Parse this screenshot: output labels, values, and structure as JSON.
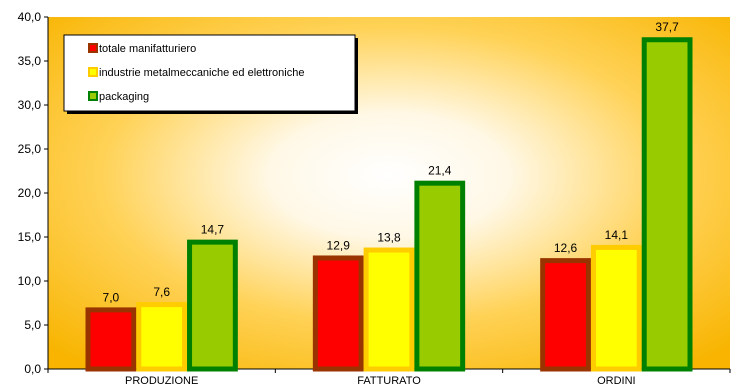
{
  "chart_data": {
    "type": "bar",
    "categories": [
      "PRODUZIONE",
      "FATTURATO",
      "ORDINI"
    ],
    "series": [
      {
        "name": "totale manifatturiero",
        "values": [
          7.0,
          12.9,
          12.6
        ],
        "value_labels": [
          "7,0",
          "12,9",
          "12,6"
        ],
        "fill": "#ff0000",
        "border": "#993300"
      },
      {
        "name": "industrie metalmeccaniche ed elettroniche",
        "values": [
          7.6,
          13.8,
          14.1
        ],
        "value_labels": [
          "7,6",
          "13,8",
          "14,1"
        ],
        "fill": "#ffff00",
        "border": "#ffcc00"
      },
      {
        "name": "packaging",
        "values": [
          14.7,
          21.4,
          37.7
        ],
        "value_labels": [
          "14,7",
          "21,4",
          "37,7"
        ],
        "fill": "#99cc00",
        "border": "#008000"
      }
    ],
    "ylim": [
      0,
      40
    ],
    "yticks": [
      0,
      5,
      10,
      15,
      20,
      25,
      30,
      35,
      40
    ],
    "ytick_labels": [
      "0,0",
      "5,0",
      "10,0",
      "15,0",
      "20,0",
      "25,0",
      "30,0",
      "35,0",
      "40,0"
    ],
    "title": "",
    "xlabel": "",
    "ylabel": "",
    "legend_position": "top-left",
    "grid": false,
    "background": "radial gradient white center to orange edges"
  }
}
